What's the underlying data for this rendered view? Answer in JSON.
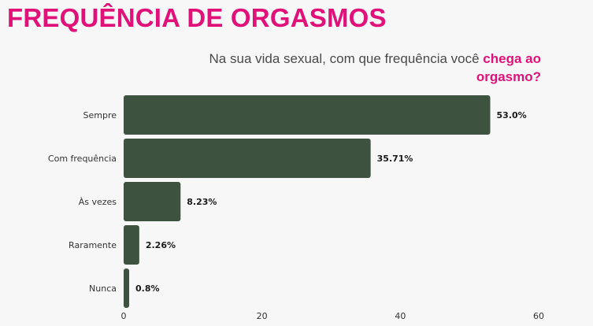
{
  "title": "FREQUÊNCIA DE ORGASMOS",
  "subtitle": {
    "prefix": "Na sua vida sexual, com que frequência você ",
    "highlight": "chega ao orgasmo?"
  },
  "colors": {
    "accent": "#e0127a",
    "bar": "#3d533f",
    "text": "#4a4a4a",
    "background": "#f7f7f7"
  },
  "chart_data": {
    "type": "bar",
    "orientation": "horizontal",
    "title": "FREQUÊNCIA DE ORGASMOS",
    "subtitle": "Na sua vida sexual, com que frequência você chega ao orgasmo?",
    "categories": [
      "Sempre",
      "Com frequência",
      "Às vezes",
      "Raramente",
      "Nunca"
    ],
    "values": [
      53.0,
      35.71,
      8.23,
      2.26,
      0.8
    ],
    "value_labels": [
      "53.0%",
      "35.71%",
      "8.23%",
      "2.26%",
      "0.8%"
    ],
    "xlim": [
      0,
      60
    ],
    "xticks": [
      0,
      20,
      40,
      60
    ],
    "xlabel": "",
    "ylabel": "",
    "grid": false,
    "legend": "none"
  }
}
